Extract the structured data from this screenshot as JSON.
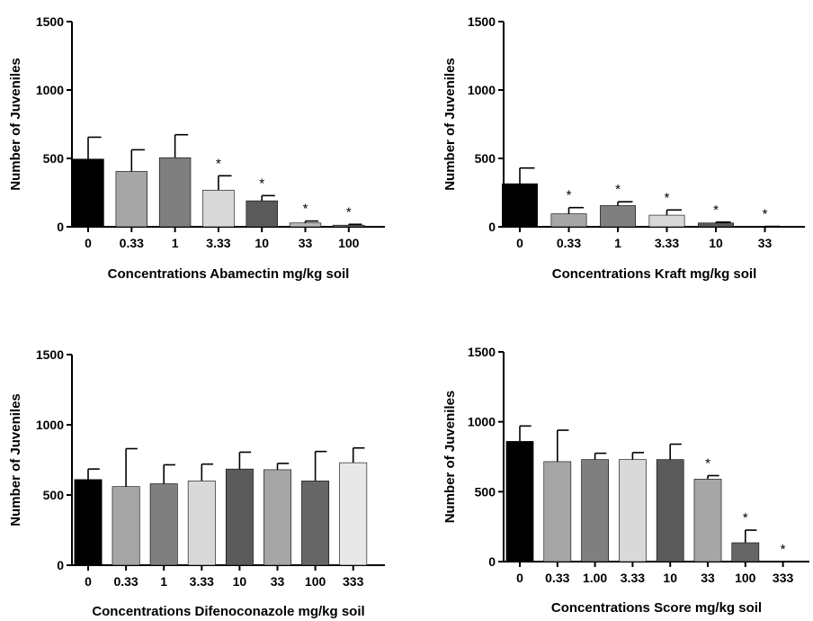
{
  "chart_data": [
    {
      "type": "bar",
      "xlabel": "Concentrations Abamectin mg/kg soil",
      "ylabel": "Number of Juveniles",
      "ylim": [
        0,
        1500
      ],
      "yticks": [
        "0",
        "500",
        "1000",
        "1500"
      ],
      "categories": [
        "0",
        "0.33",
        "1",
        "3.33",
        "10",
        "33",
        "100"
      ],
      "values": [
        495,
        405,
        505,
        268,
        190,
        28,
        12
      ],
      "errors": [
        160,
        158,
        168,
        105,
        38,
        14,
        6
      ],
      "significant": [
        false,
        false,
        false,
        true,
        true,
        true,
        true
      ],
      "significance_marker": "*",
      "colors": [
        "#000000",
        "#a6a6a6",
        "#7f7f7f",
        "#d9d9d9",
        "#5a5a5a",
        "#b8b8b8",
        "#777777"
      ]
    },
    {
      "type": "bar",
      "xlabel": "Concentrations Kraft mg/kg soil",
      "ylabel": "Number of Juveniles",
      "ylim": [
        0,
        1500
      ],
      "yticks": [
        "0",
        "500",
        "1000",
        "1500"
      ],
      "categories": [
        "0",
        "0.33",
        "1",
        "3.33",
        "10",
        "33"
      ],
      "values": [
        315,
        95,
        155,
        85,
        28,
        2
      ],
      "errors": [
        115,
        45,
        28,
        38,
        6,
        1
      ],
      "significant": [
        false,
        true,
        true,
        true,
        true,
        true
      ],
      "significance_marker": "*",
      "colors": [
        "#000000",
        "#a6a6a6",
        "#7f7f7f",
        "#d9d9d9",
        "#5a5a5a",
        "#b8b8b8"
      ]
    },
    {
      "type": "bar",
      "xlabel": "Concentrations Difenoconazole mg/kg soil",
      "ylabel": "Number of Juveniles",
      "ylim": [
        0,
        1500
      ],
      "yticks": [
        "0",
        "500",
        "1000",
        "1500"
      ],
      "categories": [
        "0",
        "0.33",
        "1",
        "3.33",
        "10",
        "33",
        "100",
        "333"
      ],
      "values": [
        610,
        560,
        580,
        600,
        685,
        680,
        600,
        730
      ],
      "errors": [
        75,
        270,
        135,
        120,
        120,
        45,
        210,
        105
      ],
      "significant": [
        false,
        false,
        false,
        false,
        false,
        false,
        false,
        false
      ],
      "significance_marker": "*",
      "colors": [
        "#000000",
        "#a6a6a6",
        "#7f7f7f",
        "#d9d9d9",
        "#5a5a5a",
        "#a6a6a6",
        "#666666",
        "#e8e8e8"
      ]
    },
    {
      "type": "bar",
      "xlabel": "Concentrations Score mg/kg soil",
      "ylabel": "Number of Juveniles",
      "ylim": [
        0,
        1500
      ],
      "yticks": [
        "0",
        "500",
        "1000",
        "1500"
      ],
      "categories": [
        "0",
        "0.33",
        "1.00",
        "3.33",
        "10",
        "33",
        "100",
        "333"
      ],
      "values": [
        860,
        715,
        730,
        730,
        730,
        590,
        135,
        0
      ],
      "errors": [
        110,
        225,
        45,
        50,
        110,
        25,
        90,
        0
      ],
      "significant": [
        false,
        false,
        false,
        false,
        false,
        true,
        true,
        true
      ],
      "significance_marker": "*",
      "colors": [
        "#000000",
        "#a6a6a6",
        "#7f7f7f",
        "#d9d9d9",
        "#5a5a5a",
        "#a6a6a6",
        "#666666",
        "#e8e8e8"
      ]
    }
  ]
}
